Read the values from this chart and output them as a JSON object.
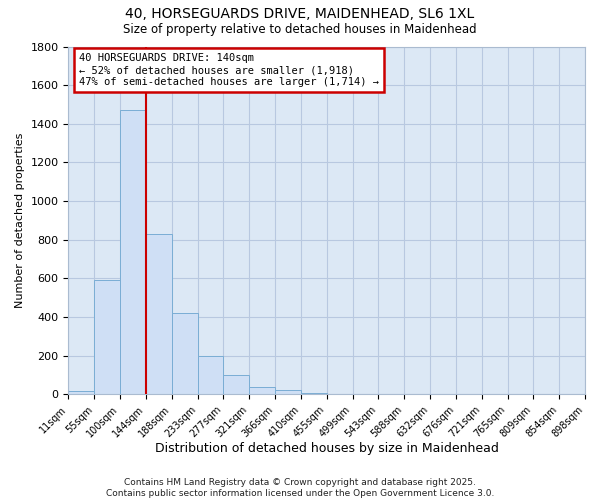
{
  "title": "40, HORSEGUARDS DRIVE, MAIDENHEAD, SL6 1XL",
  "subtitle": "Size of property relative to detached houses in Maidenhead",
  "xlabel": "Distribution of detached houses by size in Maidenhead",
  "ylabel": "Number of detached properties",
  "bar_values": [
    20,
    590,
    1470,
    830,
    420,
    200,
    100,
    38,
    25,
    10,
    0,
    0,
    0,
    0,
    0,
    0,
    0,
    0,
    0,
    0
  ],
  "bin_labels": [
    "11sqm",
    "55sqm",
    "100sqm",
    "144sqm",
    "188sqm",
    "233sqm",
    "277sqm",
    "321sqm",
    "366sqm",
    "410sqm",
    "455sqm",
    "499sqm",
    "543sqm",
    "588sqm",
    "632sqm",
    "676sqm",
    "721sqm",
    "765sqm",
    "809sqm",
    "854sqm",
    "898sqm"
  ],
  "bar_color": "#cfdff5",
  "bar_edge_color": "#7aadd4",
  "vline_color": "#cc0000",
  "annotation_text": "40 HORSEGUARDS DRIVE: 140sqm\n← 52% of detached houses are smaller (1,918)\n47% of semi-detached houses are larger (1,714) →",
  "annotation_box_color": "#ffffff",
  "annotation_box_edge": "#cc0000",
  "ylim": [
    0,
    1800
  ],
  "yticks": [
    0,
    200,
    400,
    600,
    800,
    1000,
    1200,
    1400,
    1600,
    1800
  ],
  "grid_color": "#b8c8e0",
  "bg_color": "#dce8f5",
  "footer": "Contains HM Land Registry data © Crown copyright and database right 2025.\nContains public sector information licensed under the Open Government Licence 3.0."
}
